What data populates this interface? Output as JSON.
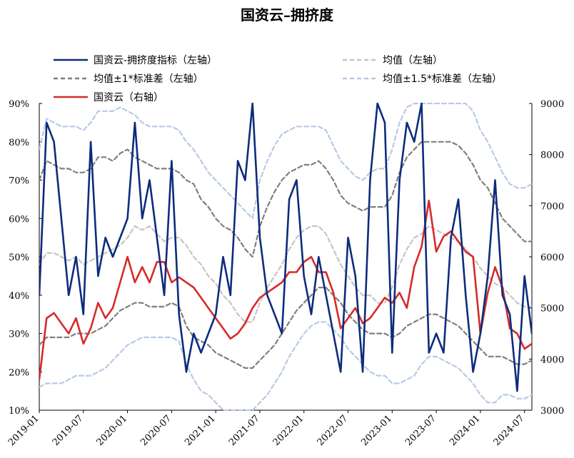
{
  "chart_data": {
    "type": "line",
    "title": "国资云–拥挤度",
    "grid": false,
    "legend_placement": "top",
    "x": [
      "2019-01",
      "2019-02",
      "2019-03",
      "2019-04",
      "2019-05",
      "2019-06",
      "2019-07",
      "2019-08",
      "2019-09",
      "2019-10",
      "2019-11",
      "2019-12",
      "2020-01",
      "2020-02",
      "2020-03",
      "2020-04",
      "2020-05",
      "2020-06",
      "2020-07",
      "2020-08",
      "2020-09",
      "2020-10",
      "2020-11",
      "2020-12",
      "2021-01",
      "2021-02",
      "2021-03",
      "2021-04",
      "2021-05",
      "2021-06",
      "2021-07",
      "2021-08",
      "2021-09",
      "2021-10",
      "2021-11",
      "2021-12",
      "2022-01",
      "2022-02",
      "2022-03",
      "2022-04",
      "2022-05",
      "2022-06",
      "2022-07",
      "2022-08",
      "2022-09",
      "2022-10",
      "2022-11",
      "2022-12",
      "2023-01",
      "2023-02",
      "2023-03",
      "2023-04",
      "2023-05",
      "2023-06",
      "2023-07",
      "2023-08",
      "2023-09",
      "2023-10",
      "2023-11",
      "2023-12",
      "2024-01",
      "2024-02",
      "2024-03",
      "2024-04",
      "2024-05",
      "2024-06",
      "2024-07",
      "2024-08"
    ],
    "x_tick_labels": [
      "2019-01",
      "2019-07",
      "2020-01",
      "2020-07",
      "2021-01",
      "2021-07",
      "2022-01",
      "2022-07",
      "2023-01",
      "2023-07",
      "2024-01",
      "2024-07"
    ],
    "left_axis": {
      "ylim": [
        10,
        90
      ],
      "ticks": [
        "10%",
        "20%",
        "30%",
        "40%",
        "50%",
        "60%",
        "70%",
        "80%",
        "90%"
      ]
    },
    "right_axis": {
      "ylim": [
        3000,
        9000
      ],
      "ticks": [
        "3000",
        "4000",
        "5000",
        "6000",
        "7000",
        "8000",
        "9000"
      ]
    },
    "series": [
      {
        "name": "国资云-拥挤度指标（左轴）",
        "axis": "left",
        "color": "#0d2c7c",
        "style": "solid",
        "values": [
          40,
          85,
          80,
          60,
          40,
          50,
          35,
          80,
          45,
          55,
          50,
          55,
          60,
          85,
          60,
          70,
          55,
          40,
          75,
          35,
          20,
          30,
          25,
          30,
          35,
          50,
          40,
          75,
          70,
          90,
          55,
          40,
          35,
          30,
          65,
          70,
          45,
          35,
          50,
          40,
          30,
          20,
          55,
          45,
          20,
          70,
          90,
          85,
          25,
          70,
          85,
          80,
          90,
          25,
          30,
          25,
          55,
          65,
          40,
          20,
          30,
          45,
          70,
          40,
          35,
          15,
          45,
          30
        ]
      },
      {
        "name": "均值（左轴）",
        "axis": "left",
        "color": "#c5c5c5",
        "style": "dashed",
        "values": [
          48,
          51,
          51,
          50,
          49,
          50,
          48,
          49,
          50,
          51,
          52,
          53,
          55,
          58,
          57,
          58,
          56,
          54,
          55,
          55,
          53,
          50,
          48,
          45,
          43,
          40,
          38,
          35,
          33,
          33,
          38,
          42,
          45,
          48,
          52,
          55,
          57,
          58,
          58,
          56,
          52,
          48,
          45,
          42,
          40,
          40,
          38,
          38,
          42,
          48,
          52,
          55,
          56,
          58,
          57,
          56,
          55,
          54,
          52,
          50,
          47,
          45,
          43,
          42,
          40,
          38,
          37,
          37
        ]
      },
      {
        "name": "均值±1*标准差（左轴）",
        "axis": "left",
        "color": "#7f7f7f",
        "style": "dashed",
        "values": [
          70,
          75,
          74,
          73,
          73,
          72,
          72,
          73,
          76,
          76,
          75,
          77,
          78,
          76,
          75,
          74,
          73,
          73,
          73,
          72,
          70,
          69,
          65,
          63,
          60,
          58,
          57,
          55,
          52,
          50,
          58,
          63,
          67,
          70,
          72,
          73,
          74,
          74,
          75,
          73,
          70,
          66,
          64,
          63,
          62,
          63,
          63,
          63,
          66,
          72,
          76,
          78,
          80,
          80,
          80,
          80,
          80,
          79,
          77,
          74,
          70,
          68,
          64,
          60,
          58,
          56,
          54,
          54
        ]
      },
      {
        "name": "均值±1*标准差（左轴）",
        "axis": "left",
        "color": "#7f7f7f",
        "style": "dashed",
        "values": [
          27,
          29,
          29,
          29,
          29,
          30,
          30,
          30,
          31,
          32,
          34,
          36,
          37,
          38,
          38,
          37,
          37,
          37,
          38,
          37,
          32,
          29,
          28,
          27,
          25,
          24,
          23,
          22,
          21,
          21,
          23,
          25,
          27,
          30,
          33,
          36,
          38,
          40,
          42,
          42,
          40,
          38,
          35,
          33,
          31,
          30,
          30,
          30,
          29,
          30,
          32,
          33,
          34,
          35,
          35,
          34,
          33,
          32,
          30,
          28,
          26,
          24,
          24,
          24,
          23,
          22,
          22,
          23
        ]
      },
      {
        "name": "均值±1.5*标准差（左轴）",
        "axis": "left",
        "color": "#b8c9e6",
        "style": "dashed",
        "values": [
          78,
          86,
          85,
          84,
          84,
          84,
          83,
          85,
          88,
          88,
          88,
          89,
          88,
          87,
          85,
          84,
          84,
          84,
          84,
          83,
          80,
          78,
          75,
          72,
          70,
          68,
          66,
          64,
          62,
          60,
          70,
          75,
          79,
          82,
          83,
          84,
          84,
          84,
          84,
          83,
          79,
          75,
          73,
          71,
          70,
          72,
          73,
          73,
          78,
          85,
          89,
          90,
          90,
          90,
          90,
          90,
          90,
          90,
          90,
          88,
          83,
          80,
          76,
          72,
          69,
          68,
          68,
          69
        ]
      },
      {
        "name": "均值±1.5*标准差（左轴）",
        "axis": "left",
        "color": "#b8c9e6",
        "style": "dashed",
        "values": [
          16,
          17,
          17,
          17,
          18,
          19,
          19,
          19,
          20,
          21,
          23,
          25,
          27,
          28,
          29,
          29,
          29,
          29,
          29,
          28,
          22,
          18,
          15,
          14,
          12,
          10,
          10,
          10,
          10,
          10,
          12,
          14,
          17,
          20,
          24,
          27,
          30,
          32,
          33,
          33,
          31,
          29,
          26,
          24,
          22,
          20,
          19,
          19,
          17,
          17,
          18,
          19,
          22,
          24,
          24,
          23,
          22,
          21,
          19,
          17,
          14,
          12,
          12,
          14,
          14,
          13,
          13,
          14
        ]
      },
      {
        "name": "国资云（右轴）",
        "axis": "right",
        "color": "#d62a2a",
        "style": "solid",
        "values": [
          3600,
          4800,
          4900,
          4700,
          4500,
          4800,
          4300,
          4600,
          5100,
          4800,
          5000,
          5500,
          6000,
          5500,
          5800,
          5500,
          5900,
          5900,
          5500,
          5600,
          5500,
          5400,
          5200,
          5000,
          4800,
          4600,
          4400,
          4500,
          4700,
          5000,
          5200,
          5300,
          5400,
          5500,
          5700,
          5700,
          5900,
          6000,
          5700,
          5700,
          5300,
          4600,
          4800,
          5000,
          4700,
          4800,
          5000,
          5200,
          5100,
          5300,
          5000,
          5800,
          6200,
          7100,
          6100,
          6400,
          6500,
          6300,
          6100,
          6000,
          4500,
          5300,
          5800,
          5400,
          4600,
          4500,
          4200,
          4300
        ]
      }
    ]
  },
  "legend": [
    {
      "label": "国资云-拥挤度指标（左轴）",
      "color": "#0d2c7c",
      "style": "solid"
    },
    {
      "label": "均值（左轴）",
      "color": "#c5c5c5",
      "style": "dashed"
    },
    {
      "label": "均值±1*标准差（左轴）",
      "color": "#7f7f7f",
      "style": "dashed"
    },
    {
      "label": "均值±1.5*标准差（左轴）",
      "color": "#b8c9e6",
      "style": "dashed"
    },
    {
      "label": "国资云（右轴）",
      "color": "#d62a2a",
      "style": "solid"
    }
  ]
}
